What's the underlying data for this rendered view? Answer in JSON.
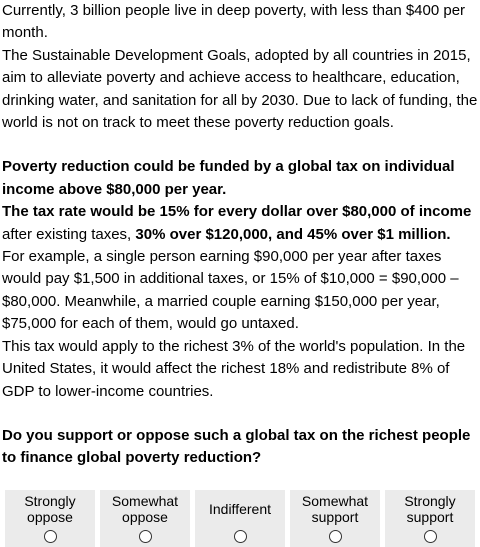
{
  "intro": {
    "p1": "Currently, 3 billion people live in deep poverty, with less than $400 per month.",
    "p2": "The Sustainable Development Goals, adopted by all countries in 2015, aim to alleviate poverty and achieve access to healthcare, education, drinking water, and sanitation for all by 2030. Due to lack of funding, the world is not on track to meet these poverty reduction goals."
  },
  "proposal": {
    "headline": "Poverty reduction could be funded by a global tax on individual income above $80,000 per year.",
    "rate_bold_1": "The tax rate would be 15% for every dollar over $80,000 of income",
    "rate_normal": " after existing taxes, ",
    "rate_bold_2": "30% over $120,000, and 45% over $1 million.",
    "example": "For example, a single person earning $90,000 per year after taxes would pay $1,500 in additional taxes, or 15% of $10,000 = $90,000 – $80,000. Meanwhile, a married couple earning $150,000 per year, $75,000 for each of them, would go untaxed.",
    "scope": "This tax would apply to the richest 3% of the world's population. In the United States, it would affect the richest 18% and redistribute 8% of GDP to lower-income countries."
  },
  "question": "Do you support or oppose such a global tax on the richest people to finance global poverty reduction?",
  "options": [
    {
      "label": "Strongly oppose",
      "selected": false
    },
    {
      "label": "Somewhat oppose",
      "selected": false
    },
    {
      "label": "Indifferent",
      "selected": false
    },
    {
      "label": "Somewhat support",
      "selected": false
    },
    {
      "label": "Strongly support",
      "selected": false
    }
  ]
}
